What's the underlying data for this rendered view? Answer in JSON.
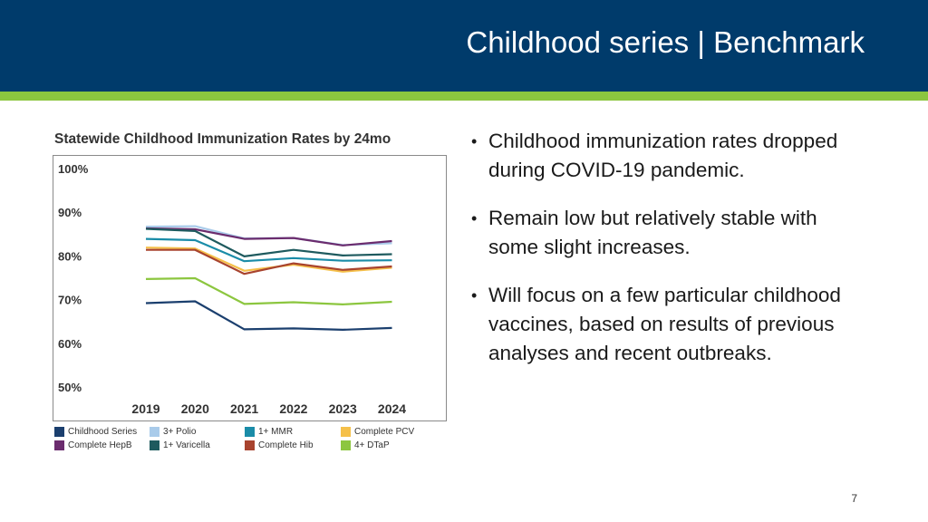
{
  "slide": {
    "title": "Childhood series | Benchmark",
    "page_number": "7",
    "bullets": [
      "Childhood immunization rates dropped during COVID-19 pandemic.",
      "Remain low but relatively stable with some slight increases.",
      "Will focus on a few particular childhood vaccines, based on results of previous analyses and recent outbreaks."
    ],
    "colors": {
      "header": "#003B6B",
      "accent": "#8CC63F"
    }
  },
  "chart_data": {
    "type": "line",
    "title": "Statewide Childhood Immunization Rates by 24mo",
    "x": [
      "2019",
      "2020",
      "2021",
      "2022",
      "2023",
      "2024"
    ],
    "y_ticks": [
      "100%",
      "90%",
      "80%",
      "70%",
      "60%",
      "50%"
    ],
    "ylim": [
      50,
      100
    ],
    "xlabel": "",
    "ylabel": "",
    "series": [
      {
        "name": "Childhood Series",
        "color": "#1B3F6E",
        "values": [
          69.2,
          69.6,
          63.2,
          63.4,
          63.1,
          63.5
        ]
      },
      {
        "name": "3+ Polio",
        "color": "#A9CBEA",
        "values": [
          86.7,
          86.8,
          84.0,
          84.1,
          82.5,
          82.9
        ]
      },
      {
        "name": "1+ MMR",
        "color": "#1A8CA8",
        "values": [
          83.9,
          83.6,
          78.8,
          79.5,
          78.9,
          79.0
        ]
      },
      {
        "name": "Complete PCV",
        "color": "#F5C04A",
        "values": [
          81.9,
          81.7,
          76.6,
          78.0,
          76.4,
          77.3
        ]
      },
      {
        "name": "Complete HepB",
        "color": "#6B2C6E",
        "values": [
          86.3,
          86.1,
          83.9,
          84.1,
          82.4,
          83.4
        ]
      },
      {
        "name": "1+ Varicella",
        "color": "#1E5A5E",
        "values": [
          86.2,
          85.7,
          79.9,
          81.4,
          80.1,
          80.4
        ]
      },
      {
        "name": "Complete Hib",
        "color": "#A8432E",
        "values": [
          81.4,
          81.4,
          75.9,
          78.3,
          76.8,
          77.6
        ]
      },
      {
        "name": "4+ DTaP",
        "color": "#8CC63F",
        "values": [
          74.7,
          74.9,
          69.0,
          69.4,
          68.9,
          69.5
        ]
      }
    ]
  }
}
